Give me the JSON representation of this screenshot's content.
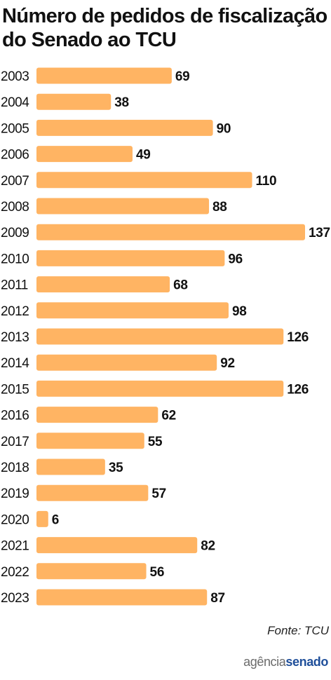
{
  "title": "Número de pedidos de fiscalização do Senado ao TCU",
  "source": "Fonte: TCU",
  "logo": {
    "part1": "agência",
    "part2": "senado"
  },
  "colors": {
    "bar": "#FFB463",
    "text": "#111111",
    "logo_blue": "#1f4f9a",
    "logo_gray": "#6b6b6b"
  },
  "chart_data": {
    "type": "bar",
    "orientation": "horizontal",
    "title": "Número de pedidos de fiscalização do Senado ao TCU",
    "categories": [
      "2003",
      "2004",
      "2005",
      "2006",
      "2007",
      "2008",
      "2009",
      "2010",
      "2011",
      "2012",
      "2013",
      "2014",
      "2015",
      "2016",
      "2017",
      "2018",
      "2019",
      "2020",
      "2021",
      "2022",
      "2023"
    ],
    "values": [
      69,
      38,
      90,
      49,
      110,
      88,
      137,
      96,
      68,
      98,
      126,
      92,
      126,
      62,
      55,
      35,
      57,
      6,
      82,
      56,
      87
    ],
    "data_labels": [
      "69",
      "38",
      "90",
      "49",
      "110",
      "88",
      "137",
      "96",
      "68",
      "98",
      "126",
      "92",
      "126",
      "62",
      "55",
      "35",
      "57",
      "6",
      "82",
      "56",
      "87"
    ],
    "xlim": [
      0,
      137
    ],
    "grid": false,
    "legend": "none",
    "xlabel": "",
    "ylabel": ""
  }
}
